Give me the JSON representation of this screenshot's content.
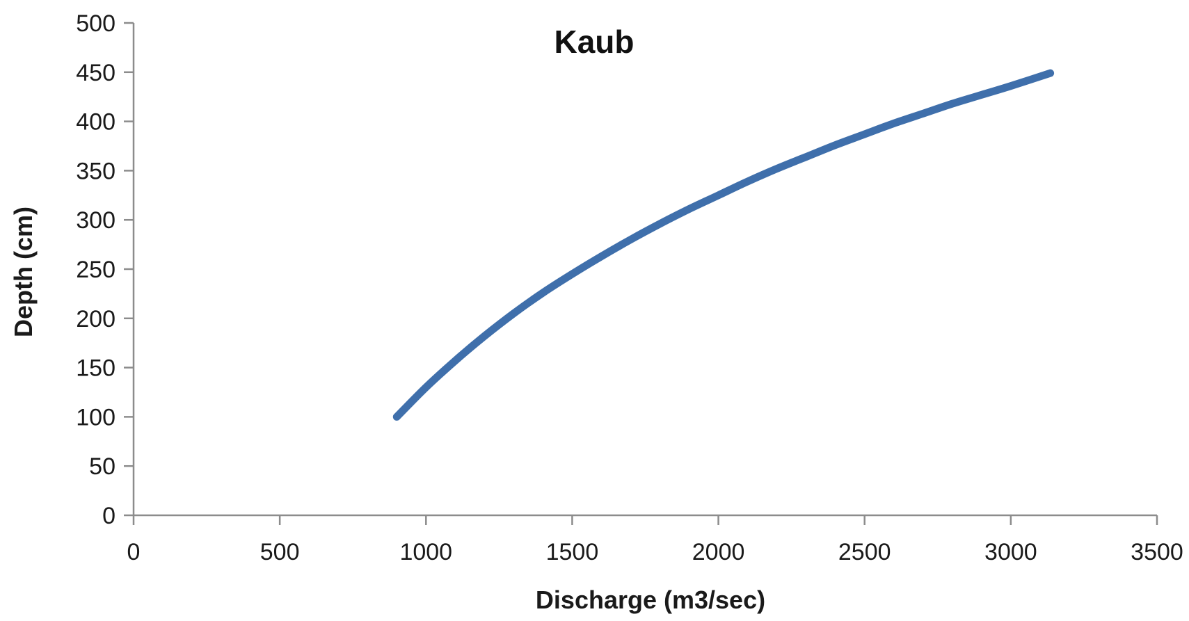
{
  "chart_data": {
    "type": "line",
    "title": "Kaub",
    "xlabel": "Discharge (m3/sec)",
    "ylabel": "Depth (cm)",
    "xlim": [
      0,
      3500
    ],
    "ylim": [
      0,
      500
    ],
    "xticks": [
      0,
      500,
      1000,
      1500,
      2000,
      2500,
      3000,
      3500
    ],
    "yticks": [
      0,
      50,
      100,
      150,
      200,
      250,
      300,
      350,
      400,
      450,
      500
    ],
    "grid": false,
    "legend": "none",
    "series": [
      {
        "color": "#3f6fab",
        "x": [
          900,
          1000,
          1100,
          1200,
          1300,
          1400,
          1500,
          1600,
          1700,
          1800,
          1900,
          2000,
          2100,
          2200,
          2300,
          2400,
          2500,
          2600,
          2700,
          2800,
          2900,
          3000,
          3135
        ],
        "y": [
          100,
          130,
          157,
          182,
          205,
          226,
          245,
          263,
          280,
          296,
          311,
          325,
          339,
          352,
          364,
          376,
          387,
          398,
          408,
          418,
          427,
          436,
          449
        ]
      }
    ]
  }
}
